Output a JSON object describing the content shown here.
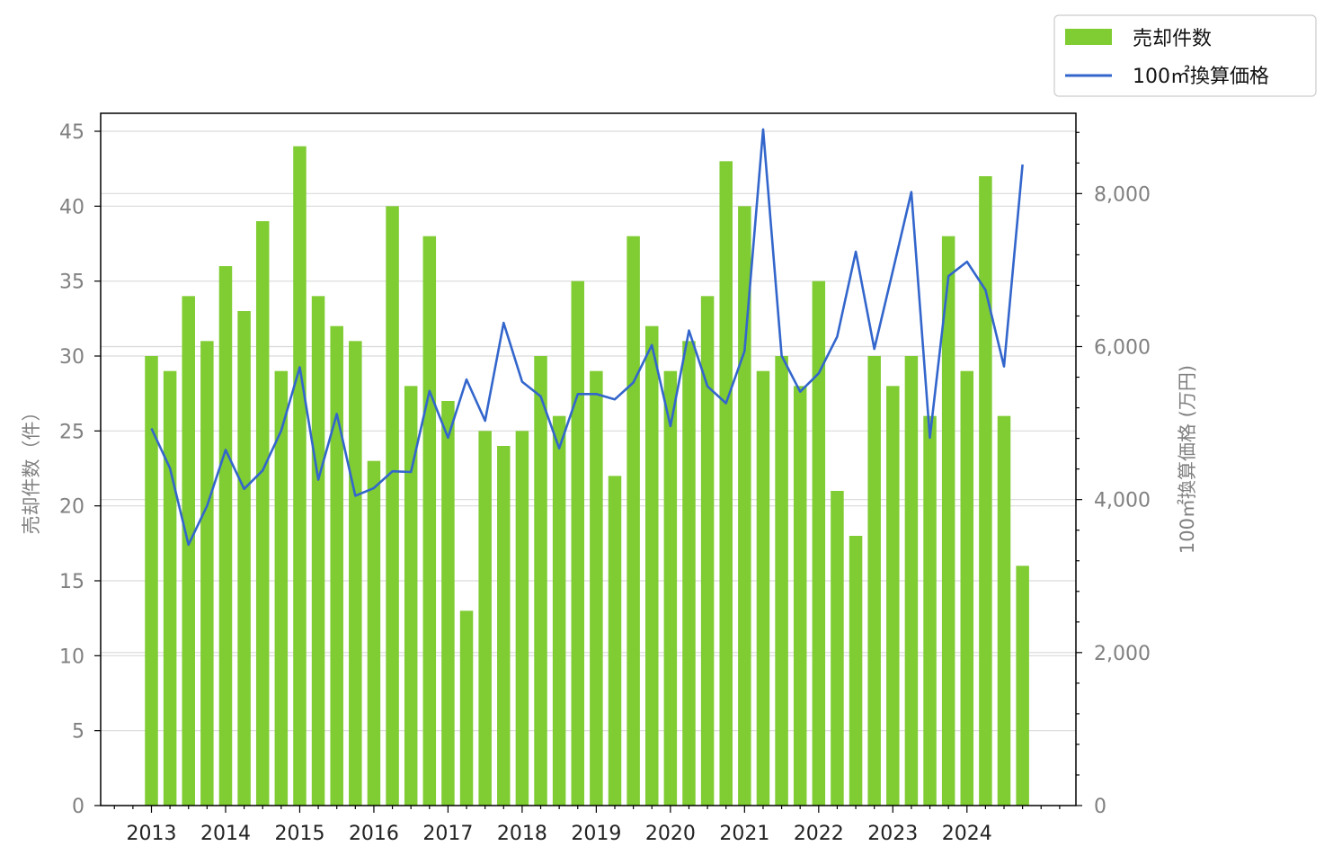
{
  "chart_data": {
    "type": "bar",
    "x_ticks": [
      "2013",
      "2014",
      "2015",
      "2016",
      "2017",
      "2018",
      "2019",
      "2020",
      "2021",
      "2022",
      "2023",
      "2024"
    ],
    "series": [
      {
        "name": "売却件数",
        "type": "bar",
        "axis": "left",
        "color": "#80cc33",
        "values": [
          30,
          29,
          34,
          31,
          36,
          33,
          39,
          29,
          44,
          34,
          32,
          31,
          23,
          40,
          28,
          38,
          27,
          13,
          25,
          24,
          25,
          30,
          26,
          35,
          29,
          22,
          38,
          32,
          29,
          31,
          34,
          43,
          40,
          29,
          30,
          28,
          35,
          21,
          18,
          30,
          28,
          30,
          26,
          38,
          29,
          42,
          26,
          16
        ]
      },
      {
        "name": "100㎡換算価格",
        "type": "line",
        "axis": "right",
        "color": "#3366cc",
        "values": [
          4930,
          4410,
          3410,
          3920,
          4650,
          4140,
          4380,
          4900,
          5730,
          4260,
          5120,
          4050,
          4150,
          4370,
          4360,
          5420,
          4810,
          5570,
          5030,
          6310,
          5540,
          5350,
          4670,
          5380,
          5380,
          5310,
          5530,
          6020,
          4960,
          6210,
          5480,
          5260,
          5940,
          8840,
          5880,
          5410,
          5650,
          6130,
          7240,
          5970,
          6990,
          8020,
          4810,
          6920,
          7110,
          6740,
          5740,
          8380
        ]
      }
    ],
    "ylabel": "売却件数（件）",
    "ylabel_right": "100㎡換算価格 (万円)",
    "ylim": [
      0,
      46.2
    ],
    "ylim_right": [
      0,
      9050
    ],
    "yticks": [
      0,
      5,
      10,
      15,
      20,
      25,
      30,
      35,
      40,
      45
    ],
    "yticks_right": [
      0,
      2000,
      4000,
      6000,
      8000
    ],
    "yticks_right_labels": [
      "0",
      "2,000",
      "4,000",
      "6,000",
      "8,000"
    ],
    "grid": "horizontal",
    "legend_position": "top-right"
  },
  "legend": {
    "items": [
      {
        "label": "売却件数",
        "color": "#80cc33",
        "kind": "bar"
      },
      {
        "label": "100㎡換算価格",
        "color": "#3366cc",
        "kind": "line"
      }
    ]
  }
}
